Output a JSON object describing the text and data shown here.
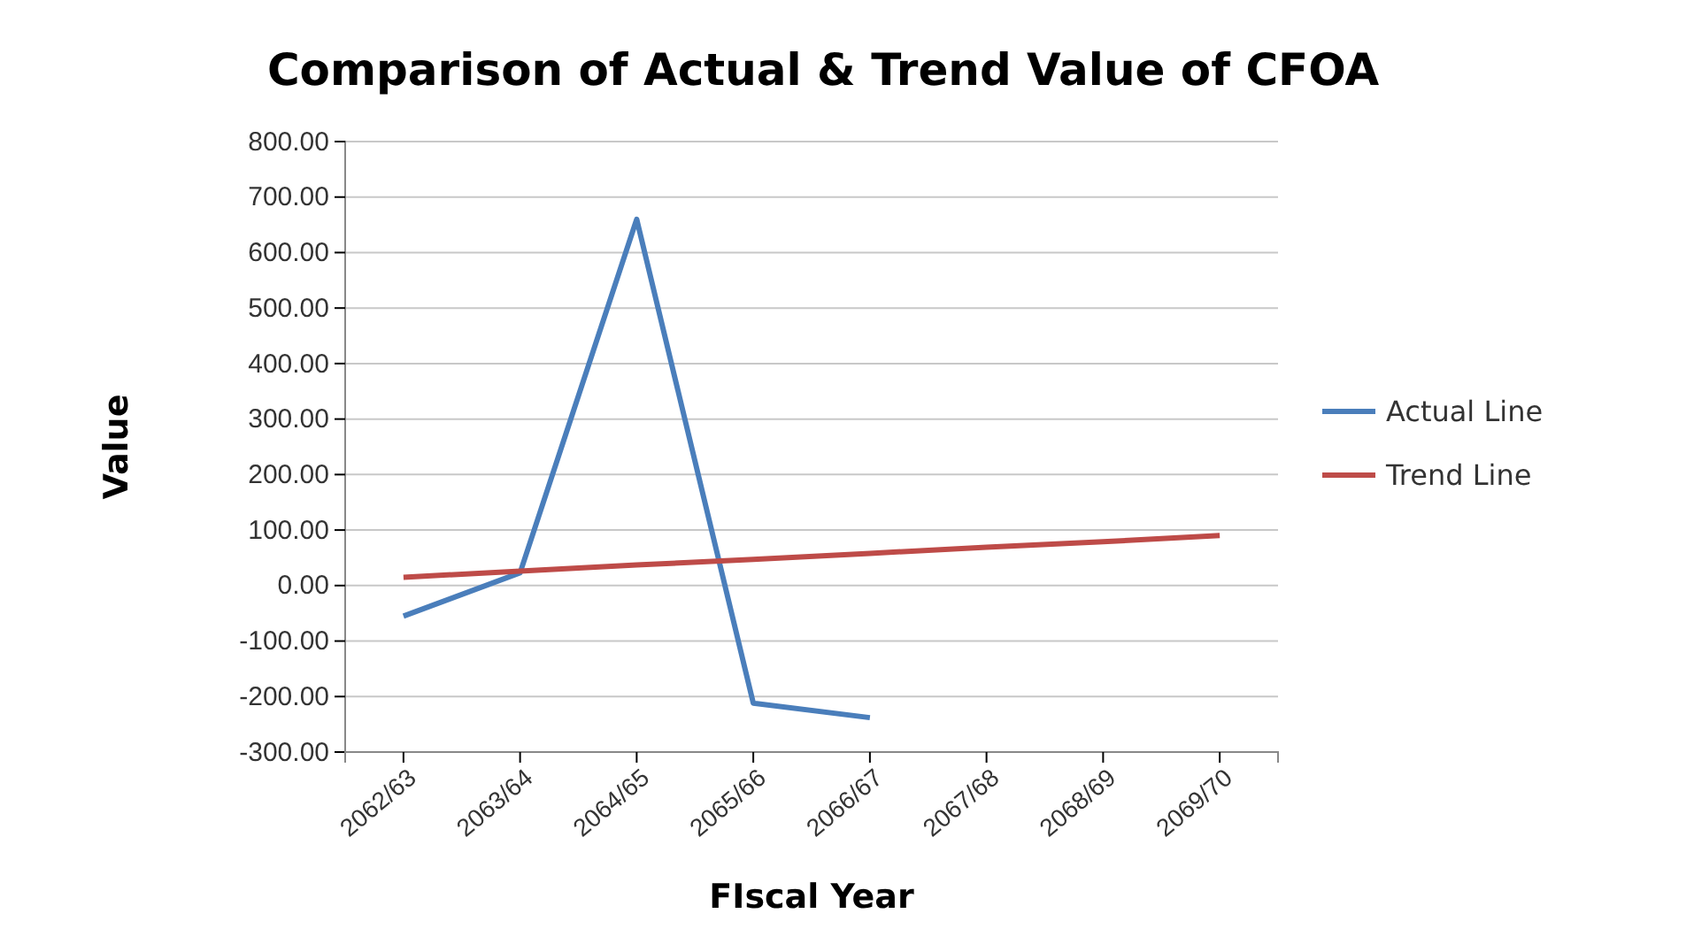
{
  "chart_data": {
    "type": "line",
    "title": "Comparison of Actual & Trend Value of CFOA",
    "xlabel": "FIscal Year",
    "ylabel": "Value",
    "categories": [
      "2062/63",
      "2063/64",
      "2064/65",
      "2065/66",
      "2066/67",
      "2067/68",
      "2068/69",
      "2069/70"
    ],
    "series": [
      {
        "name": "Actual Line",
        "color": "#4a7ebb",
        "values": [
          -55,
          23,
          660,
          -212,
          -238,
          null,
          null,
          null
        ]
      },
      {
        "name": "Trend Line",
        "color": "#be4b48",
        "values": [
          15,
          26,
          37,
          47,
          58,
          69,
          79,
          90
        ]
      }
    ],
    "ylim": [
      -300,
      800
    ],
    "yticks": [
      {
        "value": -300,
        "label": "-300.00"
      },
      {
        "value": -200,
        "label": "-200.00"
      },
      {
        "value": -100,
        "label": "-100.00"
      },
      {
        "value": 0,
        "label": "0.00"
      },
      {
        "value": 100,
        "label": "100.00"
      },
      {
        "value": 200,
        "label": "200.00"
      },
      {
        "value": 300,
        "label": "300.00"
      },
      {
        "value": 400,
        "label": "400.00"
      },
      {
        "value": 500,
        "label": "500.00"
      },
      {
        "value": 600,
        "label": "600.00"
      },
      {
        "value": 700,
        "label": "700.00"
      },
      {
        "value": 800,
        "label": "800.00"
      }
    ],
    "grid": "y",
    "legend": "right",
    "marker": "none",
    "line_style": "solid"
  }
}
